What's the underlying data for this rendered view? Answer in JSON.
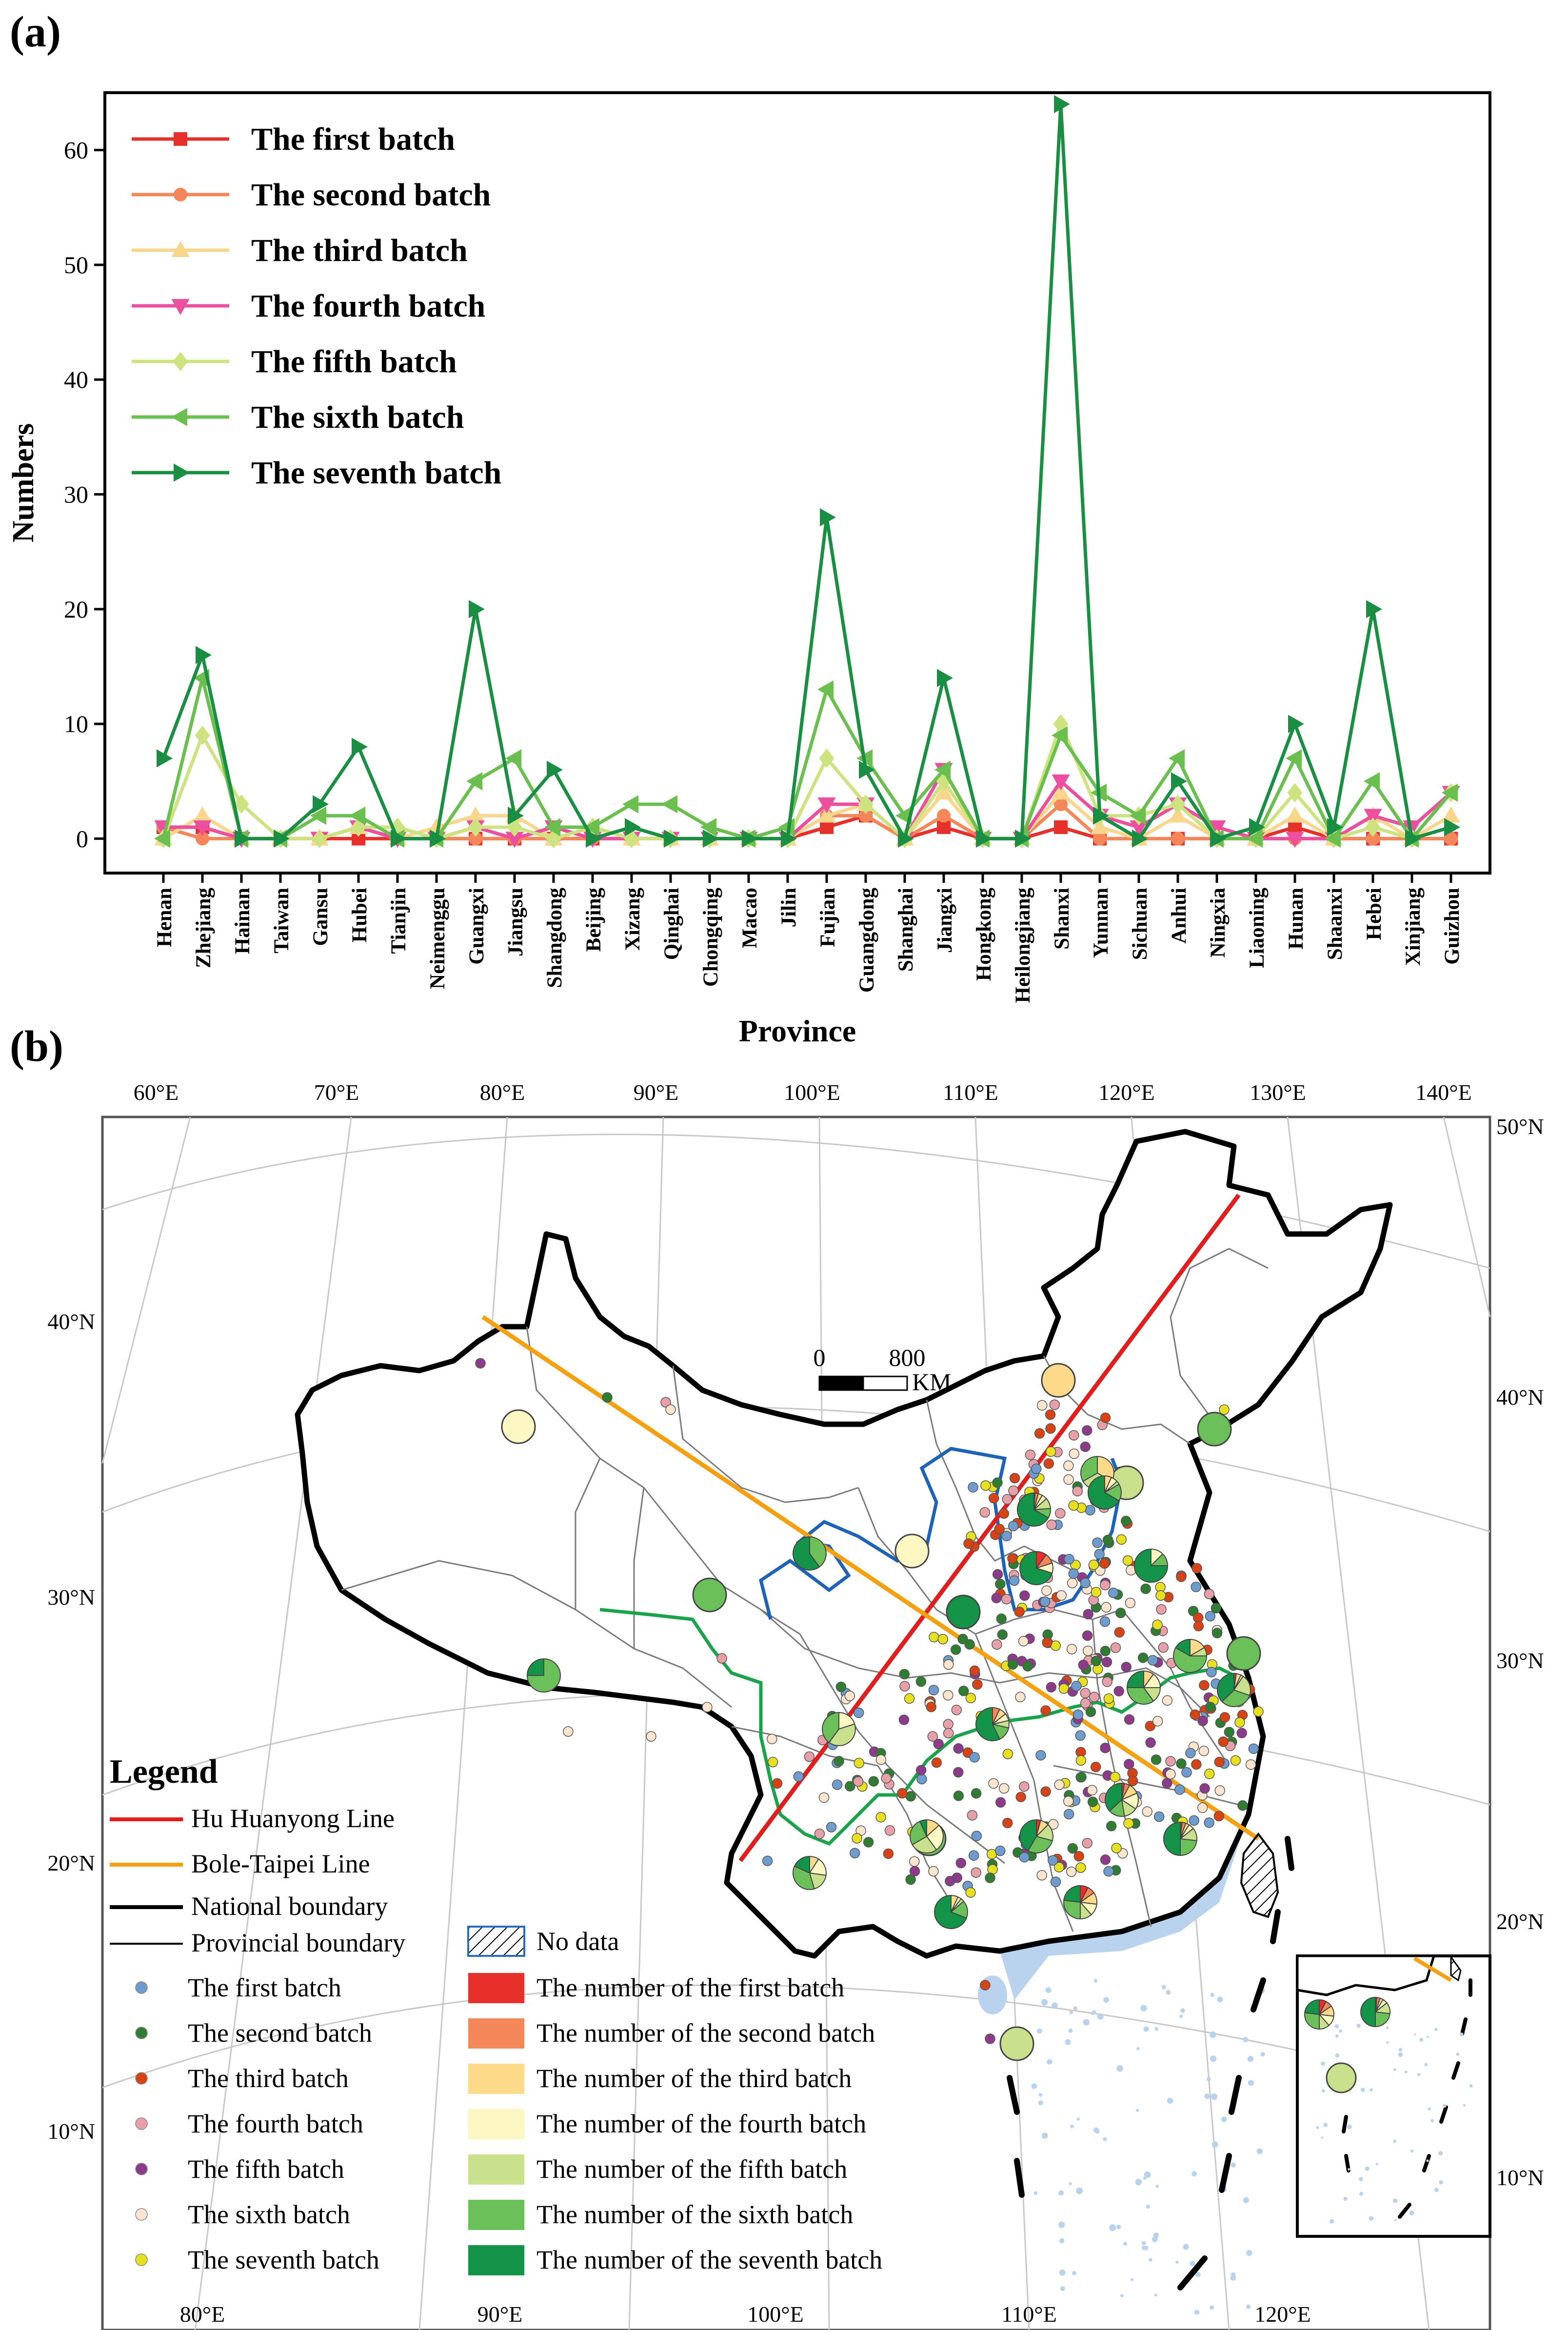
{
  "panel_a": {
    "label": "(a)",
    "chart_data": {
      "type": "line",
      "title": "",
      "xlabel": "Province",
      "ylabel": "Numbers",
      "ylim": [
        -3,
        65
      ],
      "yticks": [
        0,
        10,
        20,
        30,
        40,
        50,
        60
      ],
      "legend_position": "top-left",
      "categories": [
        "Henan",
        "Zhejiang",
        "Hainan",
        "Taiwan",
        "Gansu",
        "Hubei",
        "Tianjin",
        "Neimenggu",
        "Guangxi",
        "Jiangsu",
        "Shangdong",
        "Beijing",
        "Xizang",
        "Qinghai",
        "Chongqing",
        "Macao",
        "Jilin",
        "Fujian",
        "Guangdong",
        "Shanghai",
        "Jiangxi",
        "Hongkong",
        "Heilongjiang",
        "Shanxi",
        "Yunnan",
        "Sichuan",
        "Anhui",
        "Ningxia",
        "Liaoning",
        "Hunan",
        "Shaanxi",
        "Hebei",
        "Xinjiang",
        "Guizhou"
      ],
      "series": [
        {
          "name": "The first batch",
          "color": "#e8302a",
          "marker": "square",
          "values": [
            1,
            1,
            0,
            0,
            0,
            0,
            0,
            0,
            0,
            0,
            0,
            0,
            0,
            0,
            0,
            0,
            0,
            1,
            2,
            0,
            1,
            0,
            0,
            1,
            0,
            0,
            0,
            0,
            0,
            1,
            0,
            0,
            0,
            0
          ]
        },
        {
          "name": "The second batch",
          "color": "#f4875a",
          "marker": "circle",
          "values": [
            1,
            0,
            0,
            0,
            0,
            1,
            0,
            0,
            0,
            0,
            0,
            0,
            0,
            0,
            0,
            0,
            0,
            2,
            2,
            0,
            2,
            0,
            0,
            3,
            0,
            0,
            0,
            0,
            0,
            0,
            0,
            0,
            0,
            0
          ]
        },
        {
          "name": "The third batch",
          "color": "#f8d78c",
          "marker": "triangle-up",
          "values": [
            0,
            2,
            0,
            0,
            0,
            1,
            0,
            1,
            2,
            2,
            0,
            1,
            0,
            0,
            0,
            0,
            0,
            2,
            3,
            0,
            4,
            0,
            0,
            4,
            1,
            0,
            2,
            0,
            0,
            2,
            0,
            2,
            0,
            2
          ]
        },
        {
          "name": "The fourth batch",
          "color": "#ec4f9d",
          "marker": "triangle-down",
          "values": [
            1,
            1,
            0,
            0,
            0,
            1,
            0,
            0,
            1,
            0,
            1,
            0,
            0,
            0,
            0,
            0,
            0,
            3,
            3,
            0,
            6,
            0,
            0,
            5,
            2,
            1,
            3,
            1,
            0,
            0,
            0,
            2,
            1,
            4
          ]
        },
        {
          "name": "The fifth batch",
          "color": "#cde37f",
          "marker": "diamond",
          "values": [
            0,
            9,
            3,
            0,
            0,
            1,
            1,
            0,
            1,
            1,
            0,
            1,
            0,
            0,
            0,
            0,
            0,
            7,
            3,
            0,
            5,
            0,
            0,
            10,
            2,
            2,
            3,
            0,
            0,
            4,
            0,
            1,
            0,
            4
          ]
        },
        {
          "name": "The sixth batch",
          "color": "#6abf4f",
          "marker": "triangle-left",
          "values": [
            0,
            14,
            0,
            0,
            2,
            2,
            0,
            0,
            5,
            7,
            1,
            1,
            3,
            3,
            1,
            0,
            1,
            13,
            7,
            2,
            6,
            0,
            0,
            9,
            4,
            2,
            7,
            0,
            0,
            7,
            0,
            5,
            0,
            4
          ]
        },
        {
          "name": "The seventh batch",
          "color": "#1a8f43",
          "marker": "triangle-right",
          "values": [
            7,
            16,
            0,
            0,
            3,
            8,
            0,
            0,
            20,
            2,
            6,
            0,
            1,
            0,
            0,
            0,
            0,
            28,
            6,
            0,
            14,
            0,
            0,
            64,
            2,
            0,
            5,
            0,
            1,
            10,
            1,
            20,
            0,
            1
          ]
        }
      ]
    }
  },
  "panel_b": {
    "label": "(b)",
    "map_title": "",
    "top_lon_labels": [
      "60°E",
      "70°E",
      "80°E",
      "90°E",
      "100°E",
      "110°E",
      "120°E",
      "130°E",
      "140°E"
    ],
    "bottom_lon_labels": [
      "80°E",
      "90°E",
      "100°E",
      "110°E",
      "120°E"
    ],
    "left_lat_labels": [
      "40°N",
      "30°N",
      "20°N",
      "10°N"
    ],
    "right_lat_labels": [
      "50°N",
      "40°N",
      "30°N",
      "20°N",
      "10°N"
    ],
    "scale_bar": {
      "start": "0",
      "end": "800",
      "unit": "KM"
    },
    "legend_title": "Legend",
    "legend_lines": [
      {
        "label": "Hu Huanyong Line",
        "color": "#e01e1e"
      },
      {
        "label": "Bole-Taipei Line",
        "color": "#f5a011"
      },
      {
        "label": "National boundary",
        "color": "#000000"
      },
      {
        "label": "Provincial boundary",
        "color": "#000000"
      }
    ],
    "no_data_label": "No data",
    "point_legend": [
      {
        "label": "The first batch",
        "color": "#6e9ccf"
      },
      {
        "label": "The second batch",
        "color": "#2e7d32"
      },
      {
        "label": "The third batch",
        "color": "#d84315"
      },
      {
        "label": "The fourth batch",
        "color": "#e8a0a8"
      },
      {
        "label": "The fifth batch",
        "color": "#8e3a8a"
      },
      {
        "label": "The sixth batch",
        "color": "#fbe5cf"
      },
      {
        "label": "The seventh batch",
        "color": "#e6e020"
      }
    ],
    "pie_legend": [
      {
        "label": "The number of the first batch",
        "color": "#e8302a"
      },
      {
        "label": "The number of the second batch",
        "color": "#f4875a"
      },
      {
        "label": "The number of the third batch",
        "color": "#fdd98a"
      },
      {
        "label": "The number of the fourth batch",
        "color": "#fdf7c4"
      },
      {
        "label": "The number of the fifth batch",
        "color": "#c9e18c"
      },
      {
        "label": "The number of the sixth batch",
        "color": "#6bc05a"
      },
      {
        "label": "The number of the seventh batch",
        "color": "#139448"
      }
    ]
  }
}
